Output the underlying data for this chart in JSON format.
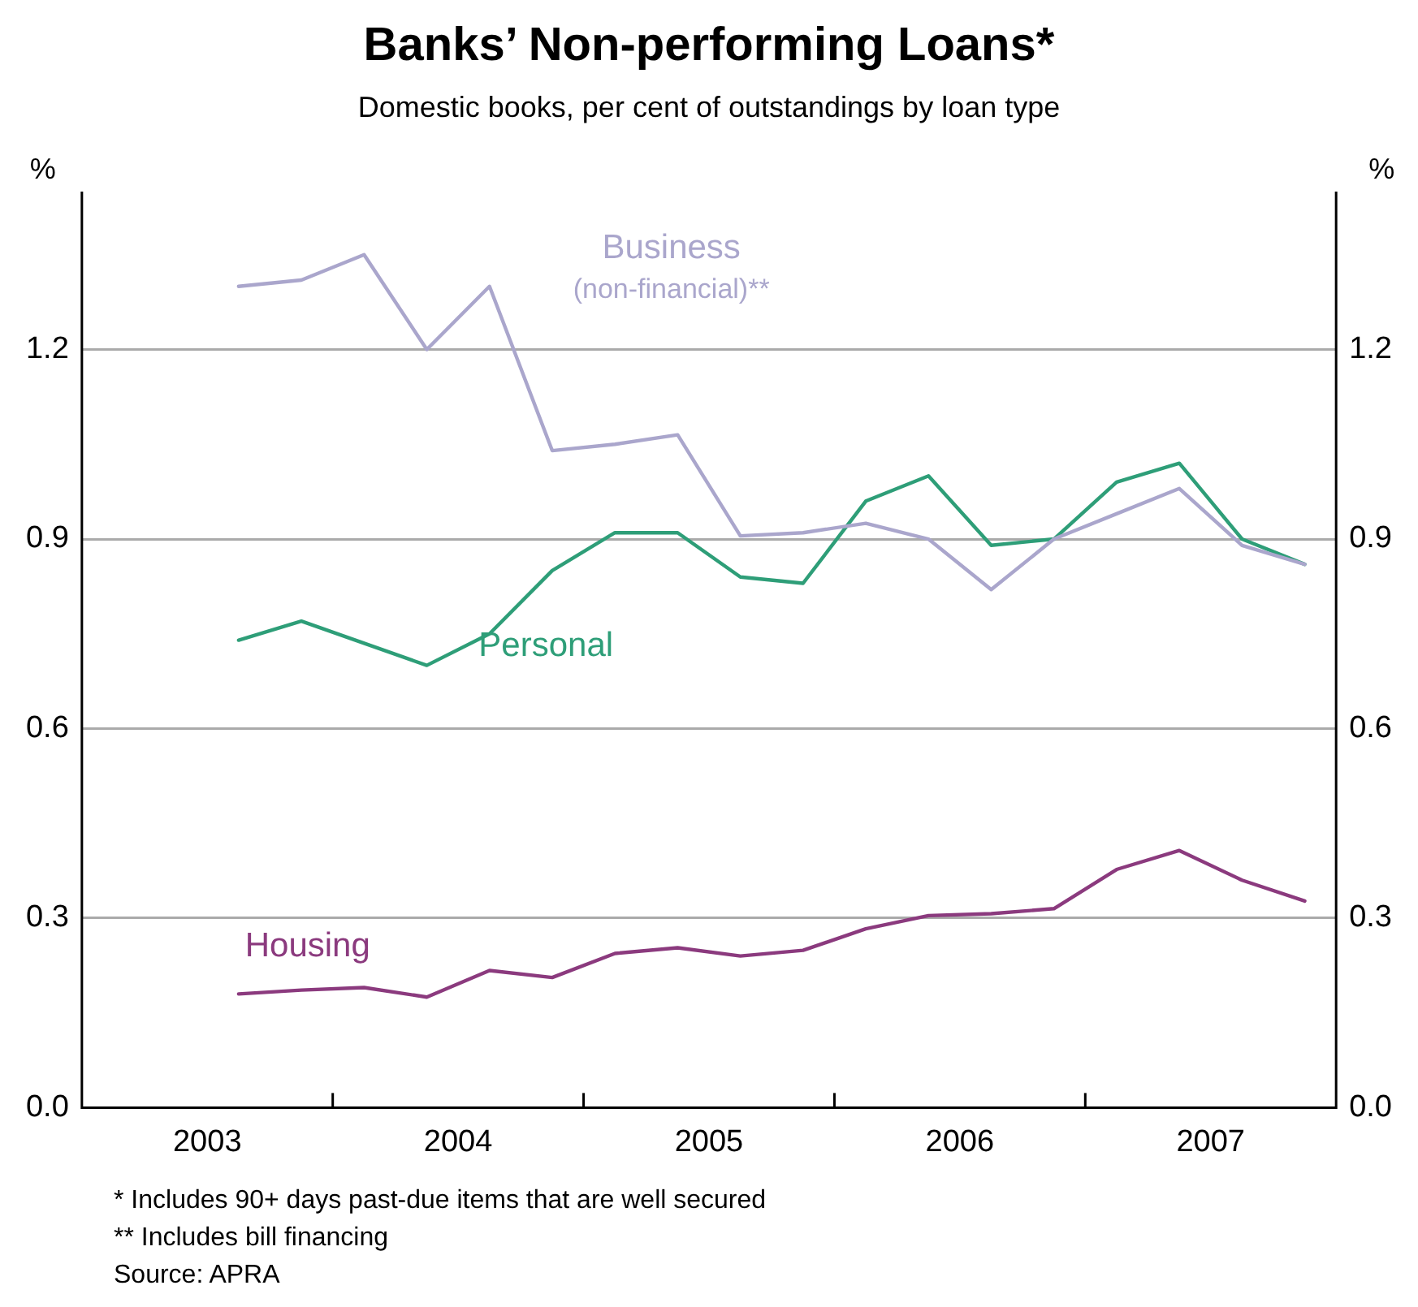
{
  "chart_data": {
    "type": "line",
    "title": "Banks’ Non-performing Loans*",
    "subtitle": "Domestic books, per cent of outstandings by loan type",
    "ylabel": "%",
    "y2label": "%",
    "x": [
      2003.625,
      2003.875,
      2004.125,
      2004.375,
      2004.625,
      2004.875,
      2005.125,
      2005.375,
      2005.625,
      2005.875,
      2006.125,
      2006.375,
      2006.625,
      2006.875,
      2007.125,
      2007.375,
      2007.625,
      2007.875
    ],
    "xlim": [
      2003,
      2008
    ],
    "xticks": [
      {
        "value": 2003.5,
        "label": "2003"
      },
      {
        "value": 2004,
        "label": null
      },
      {
        "value": 2004.5,
        "label": "2004"
      },
      {
        "value": 2005,
        "label": null
      },
      {
        "value": 2005.5,
        "label": "2005"
      },
      {
        "value": 2006,
        "label": null
      },
      {
        "value": 2006.5,
        "label": "2006"
      },
      {
        "value": 2007,
        "label": null
      },
      {
        "value": 2007.5,
        "label": "2007"
      }
    ],
    "ylim": [
      0,
      1.45
    ],
    "yticks": [
      {
        "value": 0,
        "label": "0.0"
      },
      {
        "value": 0.3,
        "label": "0.3"
      },
      {
        "value": 0.6,
        "label": "0.6"
      },
      {
        "value": 0.9,
        "label": "0.9"
      },
      {
        "value": 1.2,
        "label": "1.2"
      }
    ],
    "y2lim": [
      0,
      1.45
    ],
    "y2ticks": [
      {
        "value": 0,
        "label": "0.0"
      },
      {
        "value": 0.3,
        "label": "0.3"
      },
      {
        "value": 0.6,
        "label": "0.6"
      },
      {
        "value": 0.9,
        "label": "0.9"
      },
      {
        "value": 1.2,
        "label": "1.2"
      }
    ],
    "series": [
      {
        "name": "Business (non-financial)**",
        "color": "#aaa6cc",
        "values": [
          1.3,
          1.31,
          1.35,
          1.2,
          1.3,
          1.04,
          1.05,
          1.065,
          0.905,
          0.91,
          0.925,
          0.9,
          0.82,
          0.9,
          0.94,
          0.98,
          0.89,
          0.86
        ]
      },
      {
        "name": "Personal",
        "color": "#2e9e78",
        "values": [
          0.74,
          0.77,
          0.735,
          0.7,
          0.75,
          0.85,
          0.91,
          0.91,
          0.84,
          0.83,
          0.96,
          1.0,
          0.89,
          0.9,
          0.99,
          1.02,
          0.9,
          0.86
        ]
      },
      {
        "name": "Housing",
        "color": "#8b3a7e",
        "values": [
          0.18,
          0.186,
          0.19,
          0.175,
          0.217,
          0.206,
          0.244,
          0.253,
          0.24,
          0.249,
          0.283,
          0.304,
          0.307,
          0.315,
          0.377,
          0.407,
          0.36,
          0.327
        ]
      }
    ],
    "grid": "y",
    "legend": false,
    "marker": "none",
    "line_style": "solid",
    "annotations": [
      "* Includes 90+ days past-due items that are well secured",
      "** Includes bill financing",
      "Source: APRA"
    ]
  }
}
